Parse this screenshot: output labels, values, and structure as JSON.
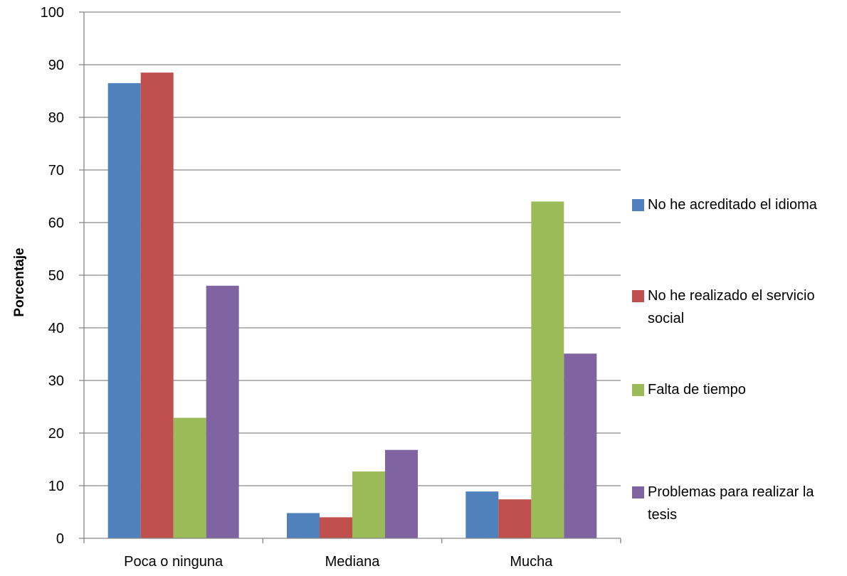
{
  "chart_data": {
    "type": "bar",
    "categories": [
      "Poca o ninguna",
      "Mediana",
      "Mucha"
    ],
    "series": [
      {
        "name": "No he acreditado el idioma",
        "color": "#4F81BD",
        "values": [
          86.5,
          4.8,
          8.9
        ]
      },
      {
        "name": "No he realizado el servicio social",
        "color": "#C0504D",
        "values": [
          88.5,
          4.0,
          7.4
        ]
      },
      {
        "name": "Falta de tiempo",
        "color": "#9BBB59",
        "values": [
          22.9,
          12.7,
          64.0
        ]
      },
      {
        "name": "Problemas para realizar la tesis",
        "color": "#8064A2",
        "values": [
          48.0,
          16.8,
          35.1
        ]
      }
    ],
    "title": "",
    "xlabel": "",
    "ylabel": "Porcentaje",
    "ylim": [
      0,
      100
    ],
    "yticks": [
      "0",
      "10",
      "20",
      "30",
      "40",
      "50",
      "60",
      "70",
      "80",
      "90",
      "100"
    ],
    "grid": true,
    "legend_position": "right"
  }
}
